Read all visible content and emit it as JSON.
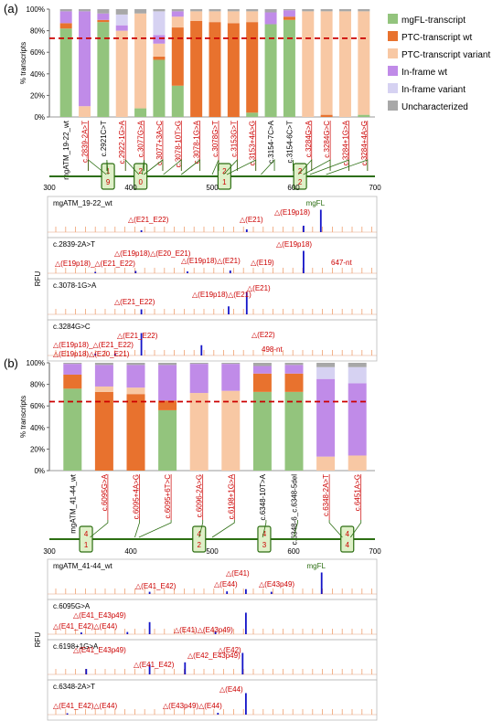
{
  "colors": {
    "mgfl": "#93c47d",
    "ptc_wt": "#e8722e",
    "ptc_variant": "#f8c8a4",
    "inframe_wt": "#c08be8",
    "inframe_variant": "#d6d2f2",
    "uncharacterized": "#a8a8a8",
    "threshold": "#cc0000",
    "label_red": "#cc0000",
    "peak_blue": "#1414c8",
    "peak_orange": "#f0a070",
    "exon_green": "#2c6e12",
    "exon_box": "#dff0c8"
  },
  "legend": [
    {
      "key": "mgfl",
      "label": "mgFL-transcript"
    },
    {
      "key": "ptc_wt",
      "label": "PTC-transcript wt"
    },
    {
      "key": "ptc_variant",
      "label": "PTC-transcript variant"
    },
    {
      "key": "inframe_wt",
      "label": "In-frame wt"
    },
    {
      "key": "inframe_variant",
      "label": "In-frame variant"
    },
    {
      "key": "uncharacterized",
      "label": "Uncharacterized"
    }
  ],
  "chart_data": [
    {
      "panel": "(a)",
      "type": "bar",
      "ylabel": "% transcripts",
      "yticks": [
        "0%",
        "20%",
        "40%",
        "60%",
        "80%",
        "100%"
      ],
      "ylim": [
        0,
        100
      ],
      "threshold": 73,
      "categories": [
        "mgATM_19-22_wt",
        "c.2839-2A>T",
        "c.2921C>T",
        "c.2922-1G>A",
        "c.3077G>A",
        "c.3077+3A>C",
        "c.3078-10T>G",
        "c.3078-1G>A",
        "c.3078G>T",
        "c.3153G>T",
        "c.3153+4A>G",
        "c.3154-7C>A",
        "c.3154-6C>T",
        "c.3284G>A",
        "c.3284G>C",
        "c.3284+1G>A",
        "c.3284+4A>G"
      ],
      "category_colors": [
        "black",
        "red",
        "black",
        "red",
        "red",
        "red",
        "red",
        "red",
        "red",
        "red",
        "red",
        "black",
        "black",
        "red",
        "red",
        "red",
        "red"
      ],
      "series": [
        {
          "key": "mgfl",
          "values": [
            82,
            0,
            88,
            0,
            8,
            53,
            29,
            0,
            0,
            0,
            4,
            86,
            90,
            0,
            0,
            0,
            2
          ]
        },
        {
          "key": "ptc_wt",
          "values": [
            5,
            0,
            2,
            0,
            0,
            3,
            54,
            89,
            88,
            87,
            84,
            0,
            3,
            0,
            2,
            0,
            0
          ]
        },
        {
          "key": "ptc_variant",
          "values": [
            0,
            10,
            0,
            80,
            88,
            12,
            10,
            9,
            10,
            11,
            10,
            0,
            0,
            98,
            96,
            98,
            96
          ]
        },
        {
          "key": "inframe_wt",
          "values": [
            11,
            88,
            6,
            5,
            0,
            8,
            5,
            0,
            0,
            0,
            0,
            11,
            6,
            0,
            0,
            0,
            0
          ]
        },
        {
          "key": "inframe_variant",
          "values": [
            0,
            0,
            0,
            10,
            0,
            22,
            0,
            0,
            0,
            0,
            0,
            0,
            0,
            0,
            0,
            0,
            0
          ]
        },
        {
          "key": "uncharacterized",
          "values": [
            2,
            2,
            4,
            5,
            4,
            2,
            2,
            2,
            2,
            2,
            2,
            3,
            1,
            2,
            2,
            2,
            2
          ]
        }
      ],
      "axis": {
        "ticks": [
          "300",
          "400",
          "500",
          "600",
          "700"
        ],
        "min": 300,
        "max": 700
      },
      "exons": [
        {
          "top": "1",
          "bottom": "9"
        },
        {
          "top": "2",
          "bottom": "0"
        },
        {
          "top": "2",
          "bottom": "1"
        },
        {
          "top": "2",
          "bottom": "2"
        }
      ]
    },
    {
      "panel": "(b)",
      "type": "bar",
      "ylabel": "% transcripts",
      "yticks": [
        "0%",
        "20%",
        "40%",
        "60%",
        "80%",
        "100%"
      ],
      "ylim": [
        0,
        100
      ],
      "threshold": 64,
      "categories": [
        "mgATM_41-44_wt",
        "c.6095G>A",
        "c.6095+4A>G",
        "c.6095+6T>C",
        "c.6096-2A>G",
        "c.6198+1G>A",
        "c.6348-10T>A",
        "c.6348-6_c.6348-5del",
        "c.6348-2A>T",
        "c.6451A>G"
      ],
      "category_colors": [
        "black",
        "red",
        "red",
        "red",
        "red",
        "red",
        "black",
        "black",
        "red",
        "red"
      ],
      "series": [
        {
          "key": "mgfl",
          "values": [
            76,
            0,
            0,
            56,
            0,
            0,
            73,
            73,
            0,
            0
          ]
        },
        {
          "key": "ptc_wt",
          "values": [
            13,
            73,
            71,
            9,
            0,
            0,
            17,
            17,
            0,
            0
          ]
        },
        {
          "key": "ptc_variant",
          "values": [
            0,
            5,
            6,
            0,
            72,
            74,
            0,
            0,
            13,
            14
          ]
        },
        {
          "key": "inframe_wt",
          "values": [
            10,
            20,
            21,
            33,
            27,
            25,
            7,
            8,
            72,
            67
          ]
        },
        {
          "key": "inframe_variant",
          "values": [
            0,
            0,
            0,
            0,
            0,
            0,
            0,
            0,
            11,
            15
          ]
        },
        {
          "key": "uncharacterized",
          "values": [
            1,
            2,
            2,
            2,
            1,
            1,
            3,
            2,
            4,
            4
          ]
        }
      ],
      "axis": {
        "ticks": [
          "300",
          "400",
          "500",
          "600",
          "700"
        ],
        "min": 300,
        "max": 700
      },
      "exons": [
        {
          "top": "4",
          "bottom": "1"
        },
        {
          "top": "4",
          "bottom": "2"
        },
        {
          "top": "4",
          "bottom": "3"
        },
        {
          "top": "4",
          "bottom": "4"
        }
      ]
    }
  ],
  "electropherograms": [
    {
      "panel": "(a)",
      "ylabel": "RFU",
      "traces": [
        {
          "name": "mgATM_19-22_wt",
          "ref_label": "mgFL",
          "peaks": [
            {
              "x": 414,
              "h": 0.08
            },
            {
              "x": 542,
              "h": 0.12
            },
            {
              "x": 611,
              "h": 0.28
            },
            {
              "x": 632,
              "h": 0.98
            }
          ],
          "labels": [
            "△(E21_E22)",
            "△(E21)",
            "△(E19p18)"
          ]
        },
        {
          "name": "c.2839-2A>T",
          "peaks": [
            {
              "x": 358,
              "h": 0.06
            },
            {
              "x": 407,
              "h": 0.1
            },
            {
              "x": 470,
              "h": 0.08
            },
            {
              "x": 522,
              "h": 0.12
            },
            {
              "x": 611,
              "h": 0.98
            }
          ],
          "labels": [
            "△(E19p18)_△(E21_E22)",
            "△(E19p18)△(E20_E21)",
            "△(E19p18)△(E21)",
            "△(E19)",
            "△(E19p18)",
            "647-nt"
          ]
        },
        {
          "name": "c.3078-1G>A",
          "peaks": [
            {
              "x": 414,
              "h": 0.22
            },
            {
              "x": 520,
              "h": 0.35
            },
            {
              "x": 542,
              "h": 0.98
            }
          ],
          "labels": [
            "△(E21_E22)",
            "△(E19p18)△(E21)",
            "△(E21)"
          ]
        },
        {
          "name": "c.3284G>C",
          "peaks": [
            {
              "x": 358,
              "h": 0.08
            },
            {
              "x": 382,
              "h": 0.08
            },
            {
              "x": 414,
              "h": 0.98
            },
            {
              "x": 487,
              "h": 0.45
            }
          ],
          "labels": [
            "△(E19p18)_△(E21_E22)",
            "△(E21_E22)",
            "△(E22)",
            "△(E19p18)△(E20_E21)",
            "498-nt"
          ]
        }
      ]
    },
    {
      "panel": "(b)",
      "ylabel": "RFU",
      "traces": [
        {
          "name": "mgATM_41-44_wt",
          "ref_label": "mgFL",
          "peaks": [
            {
              "x": 424,
              "h": 0.1
            },
            {
              "x": 518,
              "h": 0.12
            },
            {
              "x": 541,
              "h": 0.22
            },
            {
              "x": 572,
              "h": 0.1
            },
            {
              "x": 633,
              "h": 0.98
            }
          ],
          "labels": [
            "△(E41_E42)",
            "△(E41)",
            "△(E44)",
            "△(E43p49)"
          ]
        },
        {
          "name": "c.6095G>A",
          "peaks": [
            {
              "x": 341,
              "h": 0.08
            },
            {
              "x": 397,
              "h": 0.1
            },
            {
              "x": 424,
              "h": 0.55
            },
            {
              "x": 504,
              "h": 0.14
            },
            {
              "x": 541,
              "h": 0.98
            }
          ],
          "labels": [
            "△(E41_E43p49)",
            "△(E41_E42)△(E44)",
            "△(E41)△(E43p49)"
          ]
        },
        {
          "name": "c.6198+1G>A",
          "peaks": [
            {
              "x": 347,
              "h": 0.25
            },
            {
              "x": 424,
              "h": 0.45
            },
            {
              "x": 467,
              "h": 0.55
            },
            {
              "x": 537,
              "h": 0.98
            }
          ],
          "labels": [
            "△(E41_E43p49)",
            "△(E41_E42)",
            "△(E42_E43p49)",
            "△(E42)"
          ]
        },
        {
          "name": "c.6348-2A>T",
          "peaks": [
            {
              "x": 324,
              "h": 0.06
            },
            {
              "x": 507,
              "h": 0.08
            },
            {
              "x": 541,
              "h": 0.98
            }
          ],
          "labels": [
            "△(E44)",
            "△(E41_E42)△(E44)",
            "△(E43p49)△(E44)"
          ]
        }
      ]
    }
  ]
}
